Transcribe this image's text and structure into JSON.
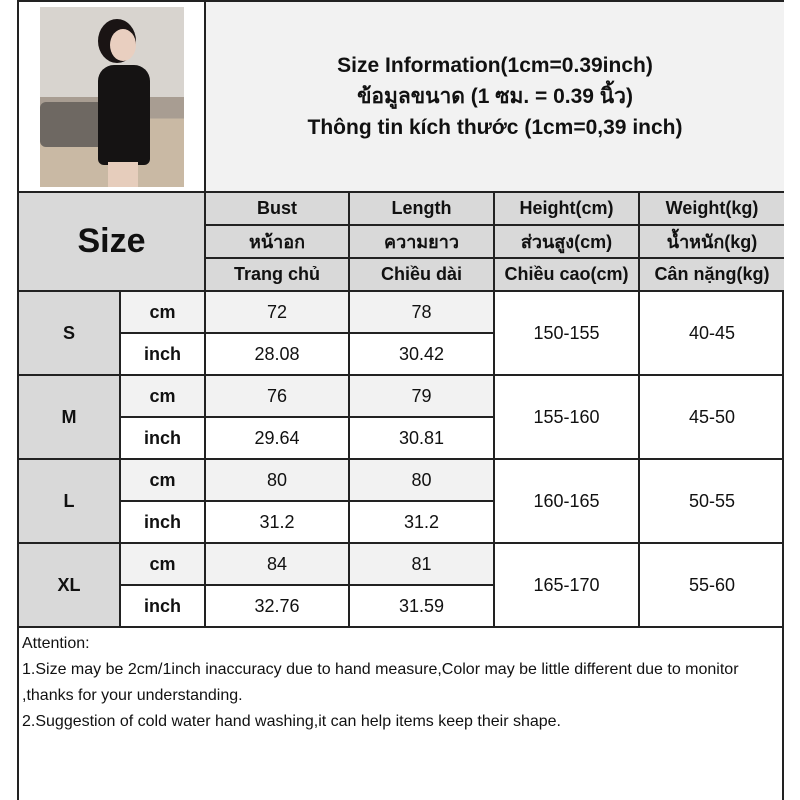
{
  "title_lines": [
    "Size Information(1cm=0.39inch)",
    "ข้อมูลขนาด (1 ซม. = 0.39 นิ้ว)",
    "Thông tin kích thước (1cm=0,39 inch)"
  ],
  "size_header": "Size",
  "columns": [
    {
      "en": "Bust",
      "th": "หน้าอก",
      "vi": "Trang chủ"
    },
    {
      "en": "Length",
      "th": "ความยาว",
      "vi": "Chiều dài"
    },
    {
      "en": "Height(cm)",
      "th": "ส่วนสูง(cm)",
      "vi": "Chiều cao(cm)"
    },
    {
      "en": "Weight(kg)",
      "th": "น้ำหนัก(kg)",
      "vi": "Cân nặng(kg)"
    }
  ],
  "rows": [
    {
      "size": "S",
      "cm_label": "cm",
      "inch_label": "inch",
      "bust_cm": "72",
      "length_cm": "78",
      "bust_inch": "28.08",
      "length_inch": "30.42",
      "height": "150-155",
      "weight": "40-45"
    },
    {
      "size": "M",
      "cm_label": "cm",
      "inch_label": "inch",
      "bust_cm": "76",
      "length_cm": "79",
      "bust_inch": "29.64",
      "length_inch": "30.81",
      "height": "155-160",
      "weight": "45-50"
    },
    {
      "size": "L",
      "cm_label": "cm",
      "inch_label": "inch",
      "bust_cm": "80",
      "length_cm": "80",
      "bust_inch": "31.2",
      "length_inch": "31.2",
      "height": "160-165",
      "weight": "50-55"
    },
    {
      "size": "XL",
      "cm_label": "cm",
      "inch_label": "inch",
      "bust_cm": "84",
      "length_cm": "81",
      "bust_inch": "32.76",
      "length_inch": "31.59",
      "height": "165-170",
      "weight": "55-60"
    }
  ],
  "attention": {
    "heading": "Attention:",
    "notes": [
      "1.Size may be 2cm/1inch inaccuracy due to hand measure,Color may be little different due to monitor ,thanks for your understanding.",
      "2.Suggestion of cold water hand washing,it can help items keep their shape."
    ]
  }
}
